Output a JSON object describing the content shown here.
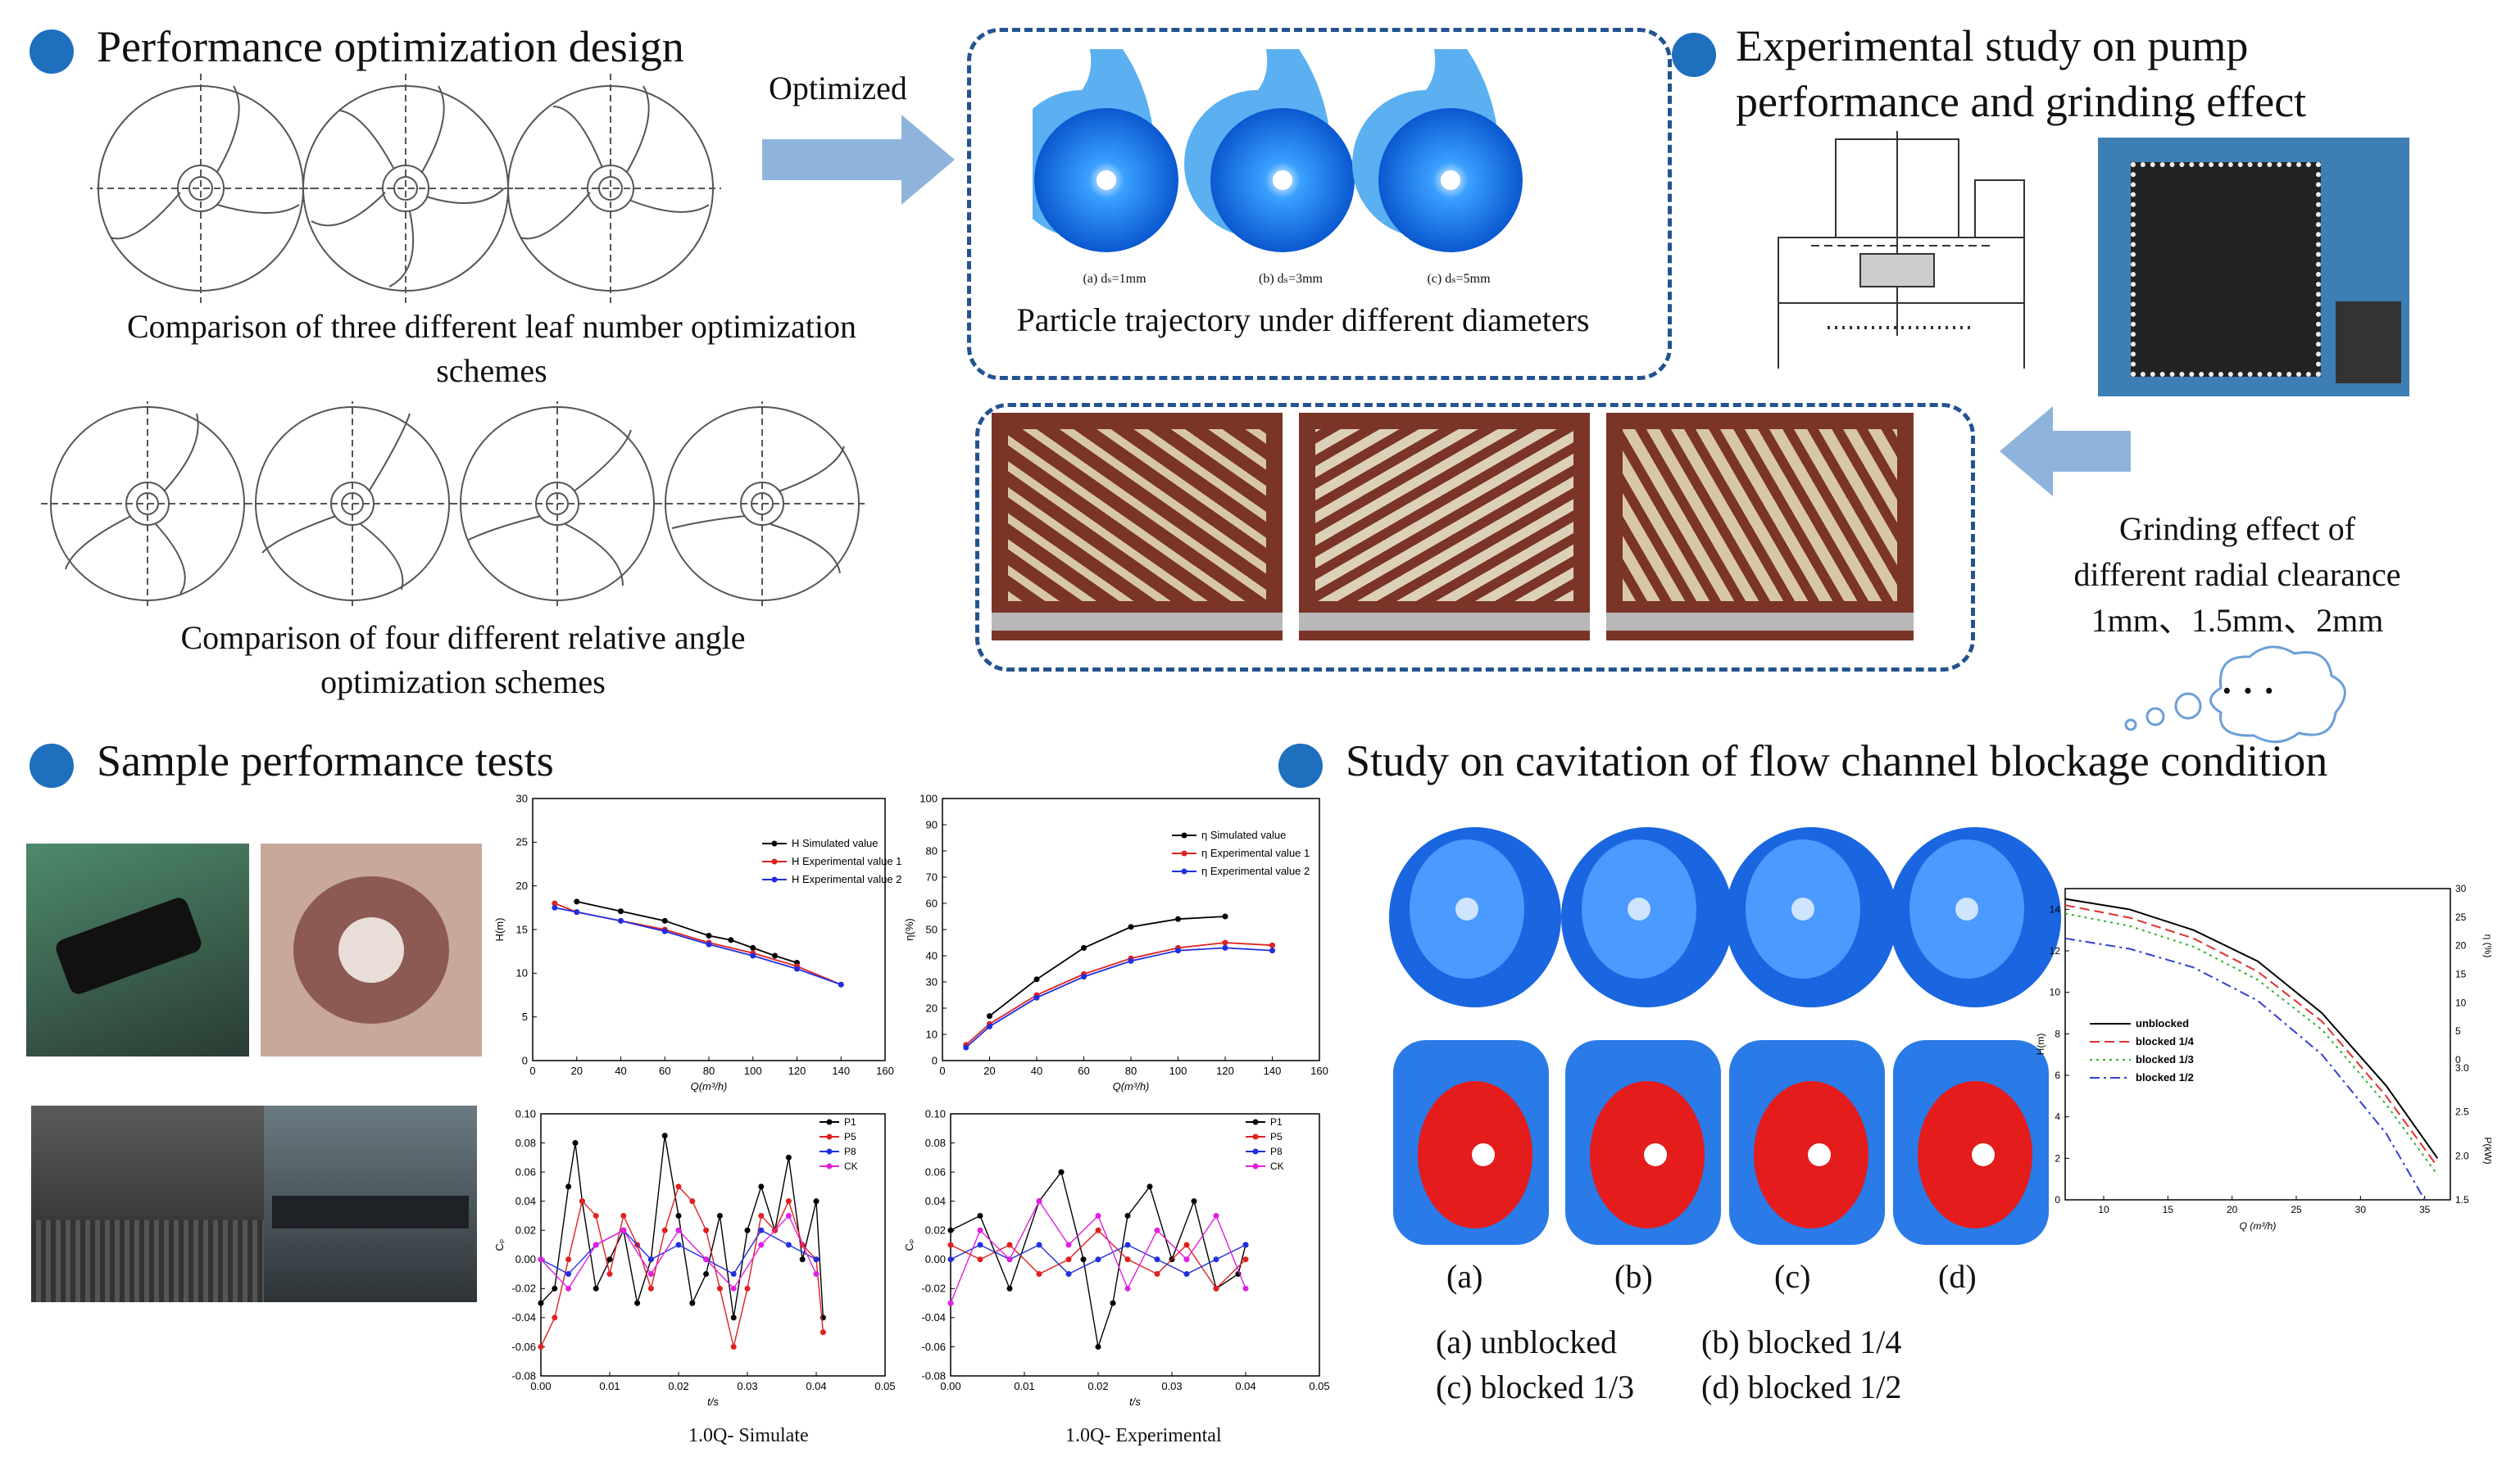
{
  "colors": {
    "accent": "#1f6fbf",
    "dashed_border": "#24538f",
    "arrow": "#8fb4dc"
  },
  "sections": {
    "perf_design": {
      "title": "Performance optimization design",
      "caption1": "Comparison of three different leaf number optimization schemes",
      "caption2": "Comparison of four different relative angle optimization schemes"
    },
    "experimental": {
      "title_line1": "Experimental study on pump",
      "title_line2": "performance and grinding effect"
    },
    "sample_tests": {
      "title": "Sample performance tests"
    },
    "cavitation": {
      "title": "Study on cavitation of flow channel blockage condition"
    }
  },
  "optimized_label": "Optimized",
  "particle": {
    "caption": "Particle trajectory under different diameters",
    "sub_labels": [
      "(a) dₛ=1mm",
      "(b) dₛ=3mm",
      "(c) dₛ=5mm"
    ]
  },
  "grinding": {
    "line1": "Grinding effect of",
    "line2": "different radial clearance",
    "line3": "1mm、1.5mm、2mm"
  },
  "thought_bubble": "· · ·",
  "cavitation_panel": {
    "labels": [
      "(a)",
      "(b)",
      "(c)",
      "(d)"
    ],
    "legend_text": [
      "(a) unblocked",
      "(b) blocked 1/4",
      "(c) blocked 1/3",
      "(d) blocked 1/2"
    ]
  },
  "chart_data": [
    {
      "type": "line",
      "title": "",
      "xlabel": "Q(m³/h)",
      "ylabel": "H(m)",
      "xlim": [
        0,
        160
      ],
      "ylim": [
        0,
        30
      ],
      "xticks": [
        "0",
        "20",
        "40",
        "60",
        "80",
        "100",
        "120",
        "140",
        "160"
      ],
      "yticks": [
        "0",
        "5",
        "10",
        "15",
        "20",
        "25",
        "30"
      ],
      "series": [
        {
          "name": "H  Simulated value",
          "color": "#000000",
          "x": [
            20,
            40,
            60,
            80,
            90,
            100,
            110,
            120
          ],
          "y": [
            18.2,
            17.1,
            16,
            14.3,
            13.8,
            12.9,
            12,
            11.2
          ]
        },
        {
          "name": "H  Experimental value 1",
          "color": "#e02020",
          "x": [
            10,
            20,
            40,
            60,
            80,
            100,
            120,
            140
          ],
          "y": [
            18,
            17,
            16,
            15,
            13.5,
            12.3,
            10.8,
            8.7
          ]
        },
        {
          "name": "H  Experimental value 2",
          "color": "#2030e0",
          "x": [
            10,
            20,
            40,
            60,
            80,
            100,
            120,
            140
          ],
          "y": [
            17.5,
            17,
            16,
            14.8,
            13.3,
            12,
            10.5,
            8.7
          ]
        }
      ]
    },
    {
      "type": "line",
      "title": "",
      "xlabel": "Q(m³/h)",
      "ylabel": "η(%)",
      "xlim": [
        0,
        160
      ],
      "ylim": [
        0,
        100
      ],
      "xticks": [
        "0",
        "20",
        "40",
        "60",
        "80",
        "100",
        "120",
        "140",
        "160"
      ],
      "yticks": [
        "0",
        "10",
        "20",
        "30",
        "40",
        "50",
        "60",
        "70",
        "80",
        "90",
        "100"
      ],
      "series": [
        {
          "name": "η  Simulated value",
          "color": "#000000",
          "x": [
            20,
            40,
            60,
            80,
            100,
            120
          ],
          "y": [
            17,
            31,
            43,
            51,
            54,
            55
          ]
        },
        {
          "name": "η  Experimental value 1",
          "color": "#e02020",
          "x": [
            10,
            20,
            40,
            60,
            80,
            100,
            120,
            140
          ],
          "y": [
            6,
            14,
            25,
            33,
            39,
            43,
            45,
            44
          ]
        },
        {
          "name": "η  Experimental value 2",
          "color": "#2030e0",
          "x": [
            10,
            20,
            40,
            60,
            80,
            100,
            120,
            140
          ],
          "y": [
            5,
            13,
            24,
            32,
            38,
            42,
            43,
            42
          ]
        }
      ]
    },
    {
      "type": "line",
      "title": "1.0Q- Simulate",
      "xlabel": "t/s",
      "ylabel": "Cₚ",
      "xlim": [
        0,
        0.05
      ],
      "ylim": [
        -0.08,
        0.1
      ],
      "xticks": [
        "0.00",
        "0.01",
        "0.02",
        "0.03",
        "0.04",
        "0.05"
      ],
      "yticks": [
        "-0.08",
        "-0.06",
        "-0.04",
        "-0.02",
        "0.00",
        "0.02",
        "0.04",
        "0.06",
        "0.08",
        "0.10"
      ],
      "series": [
        {
          "name": "P1",
          "color": "#000000",
          "x": [
            0,
            0.002,
            0.004,
            0.005,
            0.006,
            0.008,
            0.01,
            0.012,
            0.014,
            0.016,
            0.018,
            0.02,
            0.022,
            0.024,
            0.026,
            0.028,
            0.03,
            0.032,
            0.034,
            0.036,
            0.038,
            0.04,
            0.041
          ],
          "y": [
            -0.03,
            -0.02,
            0.05,
            0.08,
            0.04,
            -0.02,
            0.0,
            0.02,
            -0.03,
            0.0,
            0.085,
            0.03,
            -0.03,
            -0.01,
            0.03,
            -0.04,
            0.02,
            0.05,
            0.02,
            0.07,
            0.0,
            0.04,
            -0.04
          ]
        },
        {
          "name": "P5",
          "color": "#e02020",
          "x": [
            0,
            0.002,
            0.004,
            0.006,
            0.008,
            0.01,
            0.012,
            0.014,
            0.016,
            0.018,
            0.02,
            0.022,
            0.024,
            0.026,
            0.028,
            0.03,
            0.032,
            0.034,
            0.036,
            0.038,
            0.04,
            0.041
          ],
          "y": [
            -0.06,
            -0.04,
            0.0,
            0.04,
            0.03,
            -0.01,
            0.03,
            0.01,
            -0.02,
            0.02,
            0.05,
            0.04,
            0.02,
            -0.02,
            -0.06,
            -0.02,
            0.03,
            0.02,
            0.04,
            0.01,
            0.0,
            -0.05
          ]
        },
        {
          "name": "P8",
          "color": "#2030e0",
          "x": [
            0,
            0.004,
            0.008,
            0.012,
            0.016,
            0.02,
            0.024,
            0.028,
            0.032,
            0.036,
            0.04
          ],
          "y": [
            0.0,
            -0.01,
            0.01,
            0.02,
            0.0,
            0.01,
            0.0,
            -0.01,
            0.02,
            0.01,
            0.0
          ]
        },
        {
          "name": "CK",
          "color": "#e020e0",
          "x": [
            0,
            0.004,
            0.008,
            0.012,
            0.016,
            0.02,
            0.024,
            0.028,
            0.032,
            0.036,
            0.04
          ],
          "y": [
            0.0,
            -0.02,
            0.01,
            0.02,
            -0.01,
            0.02,
            0.0,
            -0.02,
            0.01,
            0.03,
            -0.01
          ]
        }
      ]
    },
    {
      "type": "line",
      "title": "1.0Q- Experimental",
      "xlabel": "t/s",
      "ylabel": "Cₚ",
      "xlim": [
        0,
        0.05
      ],
      "ylim": [
        -0.08,
        0.1
      ],
      "xticks": [
        "0.00",
        "0.01",
        "0.02",
        "0.03",
        "0.04",
        "0.05"
      ],
      "yticks": [
        "-0.08",
        "-0.06",
        "-0.04",
        "-0.02",
        "0.00",
        "0.02",
        "0.04",
        "0.06",
        "0.08",
        "0.10"
      ],
      "series": [
        {
          "name": "P1",
          "color": "#000000",
          "x": [
            0,
            0.004,
            0.008,
            0.012,
            0.015,
            0.018,
            0.02,
            0.022,
            0.024,
            0.027,
            0.03,
            0.033,
            0.036,
            0.039,
            0.04
          ],
          "y": [
            0.02,
            0.03,
            -0.02,
            0.04,
            0.06,
            0.0,
            -0.06,
            -0.03,
            0.03,
            0.05,
            0.0,
            0.04,
            -0.02,
            -0.01,
            0.01
          ]
        },
        {
          "name": "P5",
          "color": "#e02020",
          "x": [
            0,
            0.004,
            0.008,
            0.012,
            0.016,
            0.02,
            0.024,
            0.028,
            0.032,
            0.036,
            0.04
          ],
          "y": [
            0.01,
            0.0,
            0.01,
            -0.01,
            0.0,
            0.02,
            0.0,
            -0.01,
            0.01,
            -0.02,
            0.0
          ]
        },
        {
          "name": "P8",
          "color": "#2030e0",
          "x": [
            0,
            0.004,
            0.008,
            0.012,
            0.016,
            0.02,
            0.024,
            0.028,
            0.032,
            0.036,
            0.04
          ],
          "y": [
            0.0,
            0.01,
            0.0,
            0.01,
            -0.01,
            0.0,
            0.01,
            0.0,
            -0.01,
            0.0,
            0.01
          ]
        },
        {
          "name": "CK",
          "color": "#e020e0",
          "x": [
            0,
            0.004,
            0.008,
            0.012,
            0.016,
            0.02,
            0.024,
            0.028,
            0.032,
            0.036,
            0.04
          ],
          "y": [
            -0.03,
            0.02,
            0.0,
            0.04,
            0.01,
            0.03,
            -0.02,
            0.02,
            0.0,
            0.03,
            -0.02
          ]
        }
      ]
    },
    {
      "type": "line",
      "title": "",
      "xlabel": "Q (m³/h)",
      "ylabel": "H(m)",
      "ylabel_right1": "η (%)",
      "ylabel_right2": "P(kW)",
      "xlim": [
        7,
        37
      ],
      "ylim": [
        0,
        15
      ],
      "xticks": [
        "10",
        "15",
        "20",
        "25",
        "30",
        "35"
      ],
      "yticks": [
        "0",
        "2",
        "4",
        "6",
        "8",
        "10",
        "12",
        "14"
      ],
      "yticks_right1": [
        "0",
        "5",
        "10",
        "15",
        "20",
        "25",
        "30"
      ],
      "yticks_right2": [
        "1.5",
        "2.0",
        "2.5",
        "3.0"
      ],
      "series": [
        {
          "name": "unblocked",
          "color": "#000000",
          "style": "solid",
          "x": [
            7,
            12,
            17,
            22,
            27,
            32,
            36
          ],
          "y": [
            14.5,
            14,
            13,
            11.5,
            9,
            5.5,
            2
          ]
        },
        {
          "name": "blocked 1/4",
          "color": "#e03030",
          "style": "dash",
          "x": [
            7,
            12,
            17,
            22,
            27,
            32,
            36
          ],
          "y": [
            14.2,
            13.6,
            12.6,
            11,
            8.6,
            5,
            1.6
          ]
        },
        {
          "name": "blocked 1/3",
          "color": "#30b030",
          "style": "dot",
          "x": [
            7,
            12,
            17,
            22,
            27,
            32,
            36
          ],
          "y": [
            13.8,
            13.2,
            12.2,
            10.6,
            8.2,
            4.6,
            1.2
          ]
        },
        {
          "name": "blocked 1/2",
          "color": "#3040d0",
          "style": "dashdot",
          "x": [
            7,
            12,
            17,
            22,
            27,
            32,
            35
          ],
          "y": [
            12.6,
            12.1,
            11.2,
            9.6,
            7,
            3.2,
            0
          ]
        }
      ]
    }
  ]
}
